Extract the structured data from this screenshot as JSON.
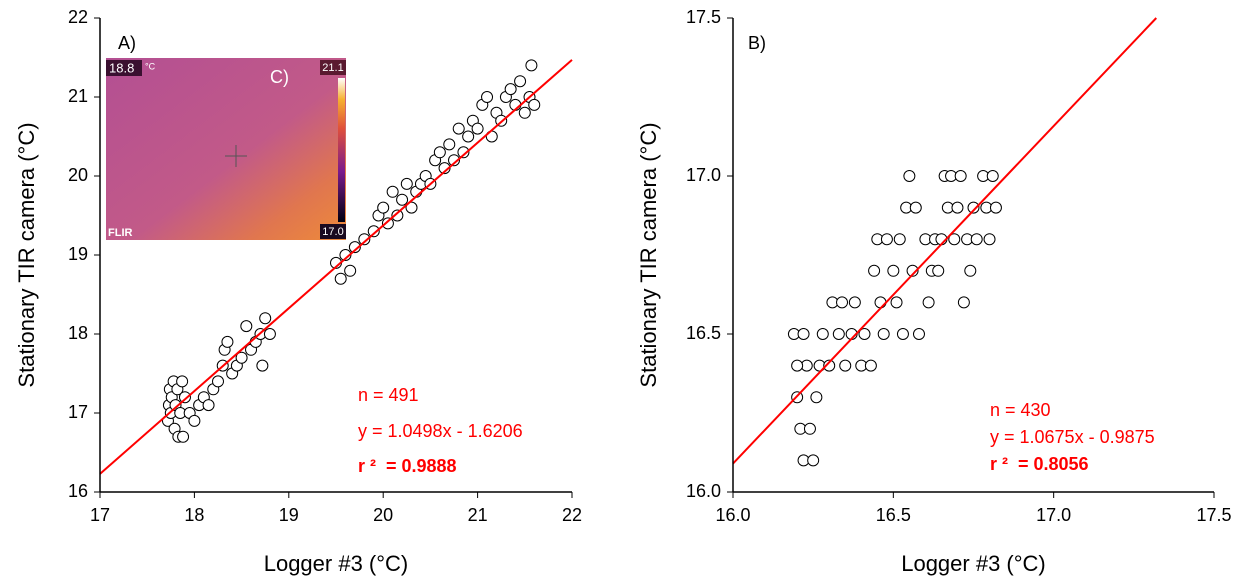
{
  "chart_data": [
    {
      "type": "scatter",
      "panel_label": "A)",
      "xlabel": "Logger #3 (°C)",
      "ylabel": "Stationary TIR camera (°C)",
      "xlim": [
        17,
        22
      ],
      "ylim": [
        16,
        22
      ],
      "xticks": [
        17,
        18,
        19,
        20,
        21,
        22
      ],
      "yticks": [
        16,
        17,
        18,
        19,
        20,
        21,
        22
      ],
      "marker_face": "#ffffff",
      "marker_edge": "#000000",
      "x": [
        17.72,
        17.73,
        17.74,
        17.75,
        17.76,
        17.78,
        17.79,
        17.8,
        17.82,
        17.83,
        17.85,
        17.87,
        17.88,
        17.9,
        17.95,
        18.0,
        18.05,
        18.1,
        18.15,
        18.2,
        18.25,
        18.3,
        18.32,
        18.35,
        18.4,
        18.45,
        18.5,
        18.55,
        18.6,
        18.65,
        18.7,
        18.72,
        18.75,
        18.8,
        19.5,
        19.55,
        19.6,
        19.65,
        19.7,
        19.8,
        19.9,
        19.95,
        20.0,
        20.05,
        20.1,
        20.15,
        20.2,
        20.25,
        20.3,
        20.35,
        20.4,
        20.45,
        20.5,
        20.55,
        20.6,
        20.65,
        20.7,
        20.75,
        20.8,
        20.85,
        20.9,
        20.95,
        21.0,
        21.05,
        21.1,
        21.15,
        21.2,
        21.25,
        21.3,
        21.35,
        21.4,
        21.45,
        21.5,
        21.55,
        21.57,
        21.6
      ],
      "values": [
        16.9,
        17.1,
        17.3,
        17.0,
        17.2,
        17.4,
        16.8,
        17.1,
        17.3,
        16.7,
        17.0,
        17.4,
        16.7,
        17.2,
        17.0,
        16.9,
        17.1,
        17.2,
        17.1,
        17.3,
        17.4,
        17.6,
        17.8,
        17.9,
        17.5,
        17.6,
        17.7,
        18.1,
        17.8,
        17.9,
        18.0,
        17.6,
        18.2,
        18.0,
        18.9,
        18.7,
        19.0,
        18.8,
        19.1,
        19.2,
        19.3,
        19.5,
        19.6,
        19.4,
        19.8,
        19.5,
        19.7,
        19.9,
        19.6,
        19.8,
        19.9,
        20.0,
        19.9,
        20.2,
        20.3,
        20.1,
        20.4,
        20.2,
        20.6,
        20.3,
        20.5,
        20.7,
        20.6,
        20.9,
        21.0,
        20.5,
        20.8,
        20.7,
        21.0,
        21.1,
        20.9,
        21.2,
        20.8,
        21.0,
        21.4,
        20.9
      ],
      "fit_line": {
        "color": "#ff0000",
        "x": [
          17,
          22
        ],
        "values": [
          16.23,
          21.47
        ]
      },
      "annotations": [
        {
          "text": "n = 491",
          "color": "#ff0000",
          "bold": false
        },
        {
          "text": "y = 1.0498x - 1.6206",
          "color": "#ff0000",
          "bold": false
        },
        {
          "text": "r ²  = 0.9888",
          "color": "#ff0000",
          "bold": true
        }
      ],
      "inset": {
        "label": "C)",
        "spot_value": "18.8",
        "unit": "°C",
        "scale_max": "21.1",
        "scale_min": "17.0",
        "logo": "FLIR"
      }
    },
    {
      "type": "scatter",
      "panel_label": "B)",
      "xlabel": "Logger #3 (°C)",
      "ylabel": "Stationary TIR camera (°C)",
      "xlim": [
        16.0,
        17.5
      ],
      "ylim": [
        16.0,
        17.5
      ],
      "xticks": [
        {
          "value": 16,
          "label": "16.0"
        },
        {
          "value": 16.5,
          "label": "16.5"
        },
        {
          "value": 17,
          "label": "17.0"
        },
        {
          "value": 17.5,
          "label": "17.5"
        }
      ],
      "yticks": [
        {
          "value": 16,
          "label": "16.0"
        },
        {
          "value": 16.5,
          "label": "16.5"
        },
        {
          "value": 17,
          "label": "17.0"
        },
        {
          "value": 17.5,
          "label": "17.5"
        }
      ],
      "marker_face": "#ffffff",
      "marker_edge": "#000000",
      "x": [
        16.19,
        16.2,
        16.21,
        16.22,
        16.23,
        16.24,
        16.25,
        16.26,
        16.2,
        16.27,
        16.22,
        16.28,
        16.3,
        16.31,
        16.33,
        16.34,
        16.35,
        16.37,
        16.38,
        16.4,
        16.41,
        16.43,
        16.44,
        16.45,
        16.46,
        16.47,
        16.48,
        16.5,
        16.51,
        16.52,
        16.53,
        16.54,
        16.55,
        16.56,
        16.57,
        16.58,
        16.6,
        16.61,
        16.62,
        16.63,
        16.64,
        16.65,
        16.66,
        16.67,
        16.68,
        16.69,
        16.7,
        16.71,
        16.72,
        16.73,
        16.74,
        16.75,
        16.76,
        16.78,
        16.79,
        16.8,
        16.82,
        16.81
      ],
      "values": [
        16.5,
        16.3,
        16.2,
        16.1,
        16.4,
        16.2,
        16.1,
        16.3,
        16.4,
        16.4,
        16.5,
        16.5,
        16.4,
        16.6,
        16.5,
        16.6,
        16.4,
        16.5,
        16.6,
        16.4,
        16.5,
        16.4,
        16.7,
        16.8,
        16.6,
        16.5,
        16.8,
        16.7,
        16.6,
        16.8,
        16.5,
        16.9,
        17.0,
        16.7,
        16.9,
        16.5,
        16.8,
        16.6,
        16.7,
        16.8,
        16.7,
        16.8,
        17.0,
        16.9,
        17.0,
        16.8,
        16.9,
        17.0,
        16.6,
        16.8,
        16.7,
        16.9,
        16.8,
        17.0,
        16.9,
        16.8,
        16.9,
        17.0
      ],
      "fit_line": {
        "color": "#ff0000",
        "x": [
          16.0,
          17.32
        ],
        "values": [
          16.09,
          17.5
        ]
      },
      "annotations": [
        {
          "text": "n = 430",
          "color": "#ff0000",
          "bold": false
        },
        {
          "text": "y = 1.0675x - 0.9875",
          "color": "#ff0000",
          "bold": false
        },
        {
          "text": "r ²  = 0.8056",
          "color": "#ff0000",
          "bold": true
        }
      ]
    }
  ]
}
